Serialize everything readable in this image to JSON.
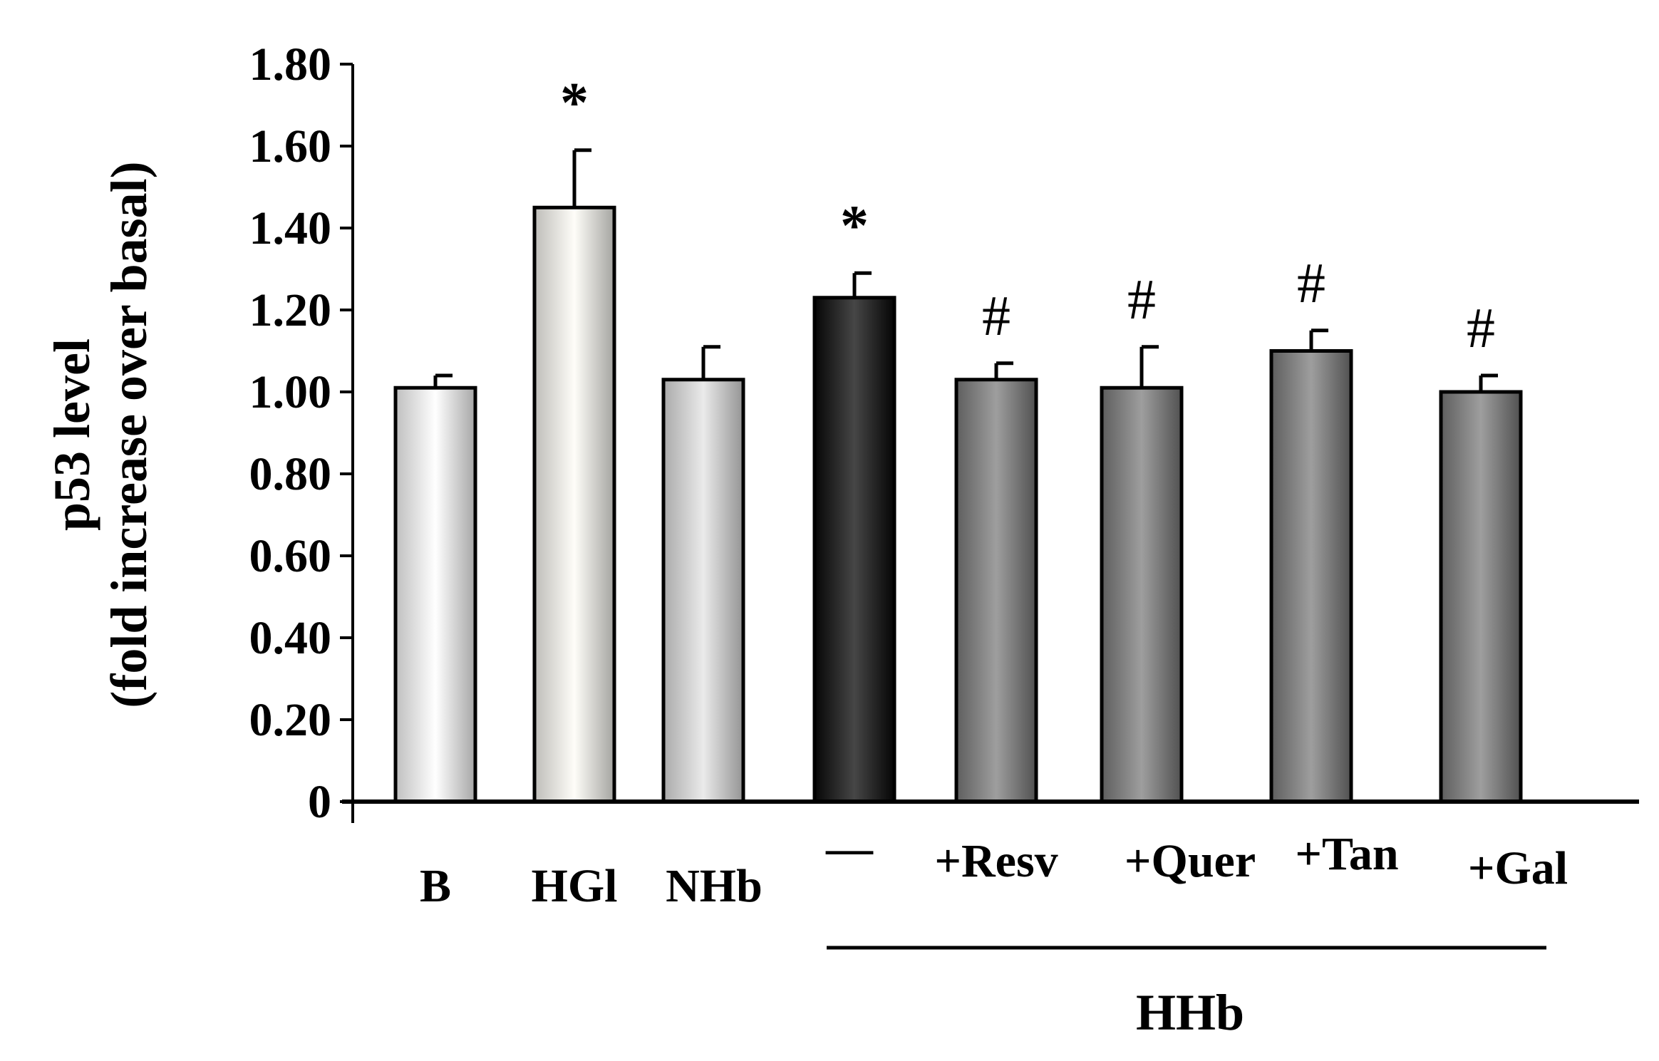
{
  "chart_data": {
    "type": "bar",
    "ylabel_line1": "p53 level",
    "ylabel_line2": "(fold increase over basal)",
    "ylim": [
      0,
      1.8
    ],
    "yticks": [
      "0",
      "0.20",
      "0.40",
      "0.60",
      "0.80",
      "1.00",
      "1.20",
      "1.40",
      "1.60",
      "1.80"
    ],
    "categories": [
      "B",
      "HGl",
      "NHb",
      "—",
      "+Resv",
      "+Quer",
      "+Tan",
      "+Gal"
    ],
    "values": [
      1.01,
      1.45,
      1.03,
      1.23,
      1.03,
      1.01,
      1.1,
      1.0
    ],
    "errors": [
      0.03,
      0.14,
      0.08,
      0.06,
      0.04,
      0.1,
      0.05,
      0.04
    ],
    "colors": [
      "#ffffff",
      "#fdfcf6",
      "#e3e3e3",
      "#080808",
      "#7d7d7d",
      "#7d7d7d",
      "#7d7d7d",
      "#7d7d7d"
    ],
    "annotations": [
      "",
      "*",
      "",
      "*",
      "#",
      "#",
      "#",
      "#"
    ],
    "group_label": "HHb",
    "grid": false,
    "legend": "none"
  }
}
